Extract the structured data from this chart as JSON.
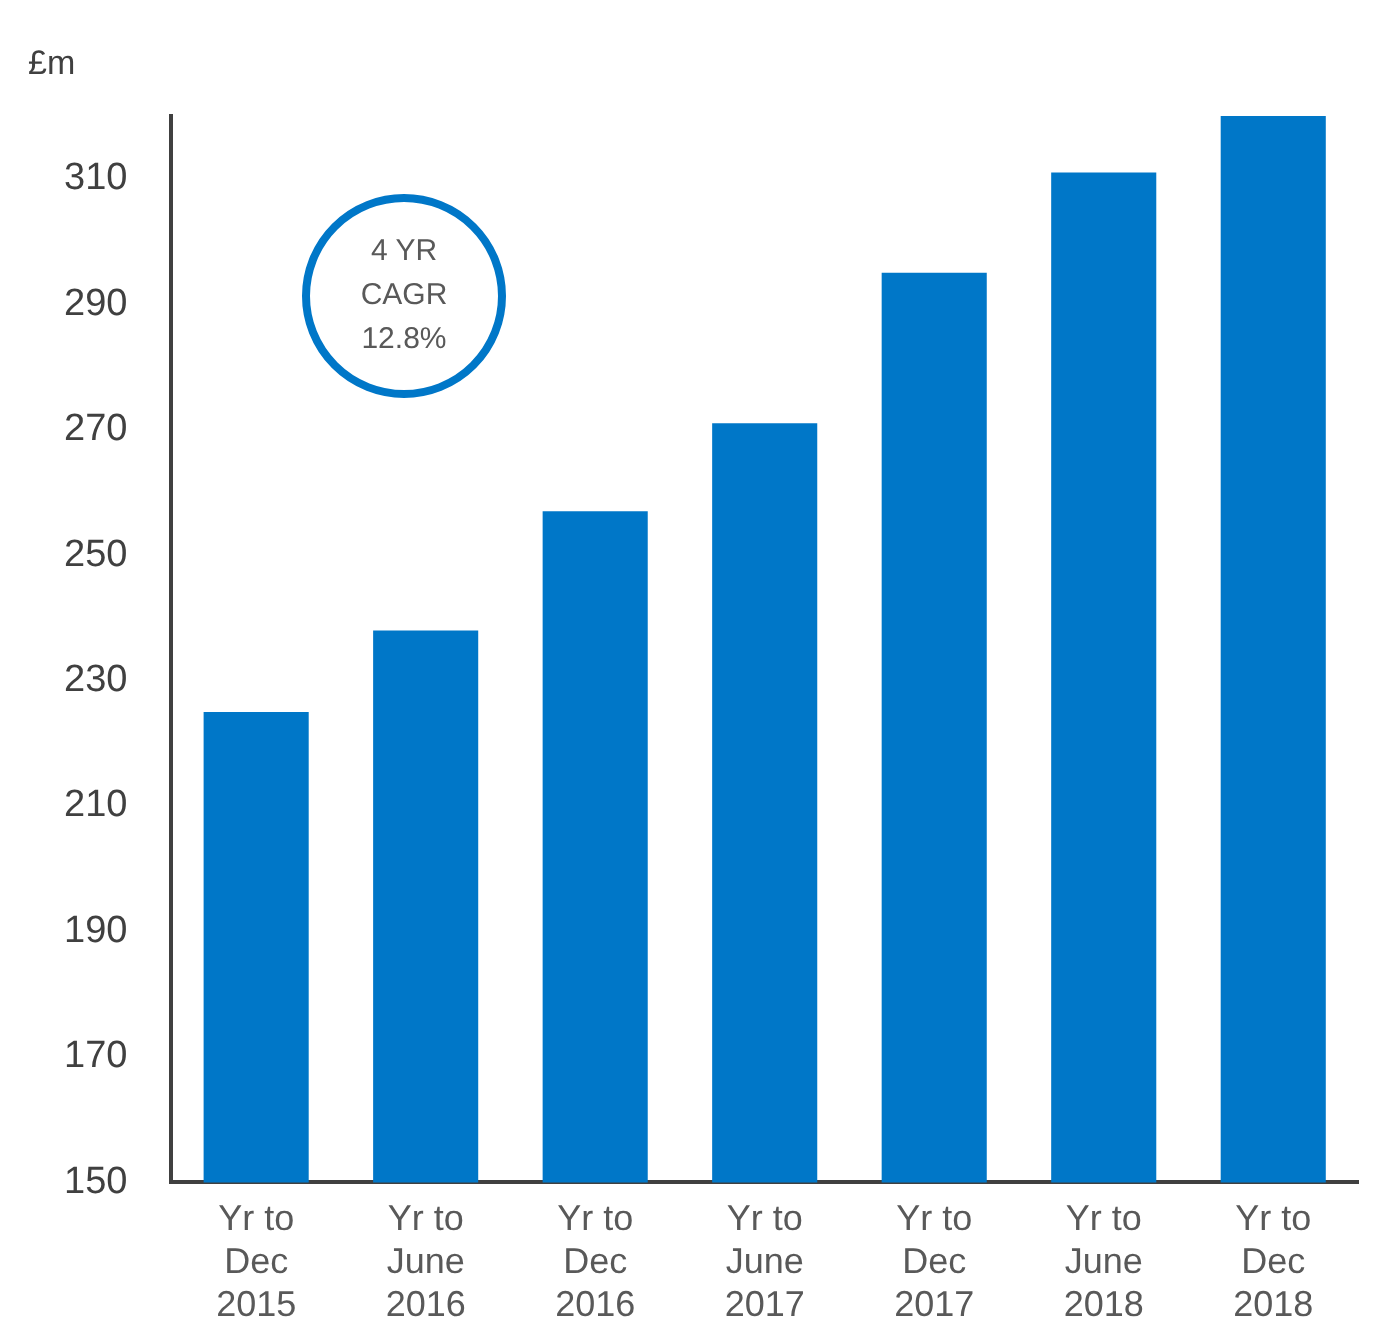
{
  "chart_data": {
    "type": "bar",
    "ylabel": "£m",
    "categories": [
      "Yr to Dec 2015",
      "Yr to June 2016",
      "Yr to Dec 2016",
      "Yr to June 2017",
      "Yr to Dec 2017",
      "Yr to June 2018",
      "Yr to Dec 2018"
    ],
    "values": [
      225,
      238,
      257,
      271,
      295,
      311,
      320
    ],
    "color": "#0077c8",
    "ylim": [
      150,
      320
    ],
    "yticks": [
      150,
      170,
      190,
      210,
      230,
      250,
      270,
      290,
      310
    ],
    "grid": false,
    "legend": false,
    "annotations": [
      "4 YR CAGR 12.8%"
    ]
  }
}
